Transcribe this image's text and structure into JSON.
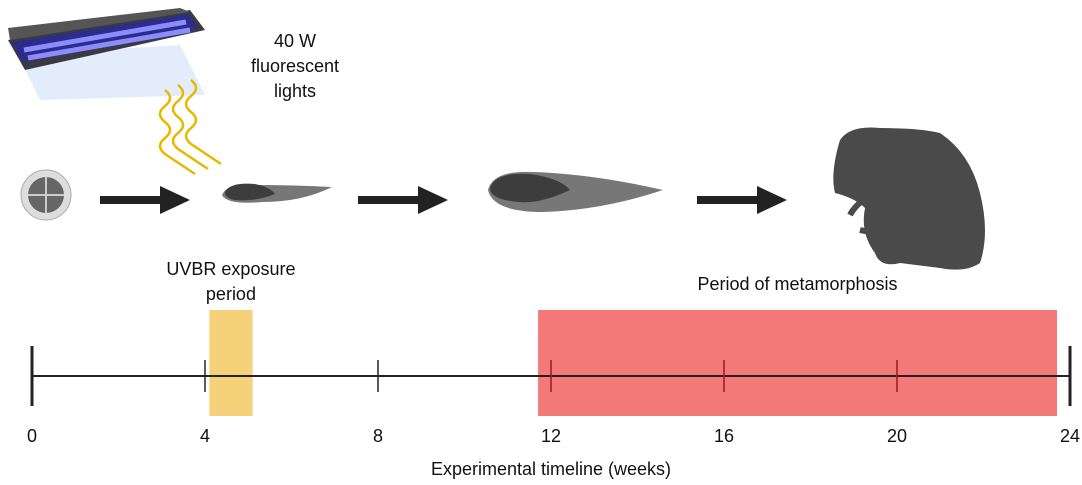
{
  "lamp": {
    "label_lines": [
      "40 W",
      "fluorescent",
      "lights"
    ]
  },
  "timeline": {
    "xlim": [
      0,
      24
    ],
    "xticks": [
      0,
      4,
      8,
      12,
      16,
      20,
      24
    ],
    "axis_label": "Experimental timeline (weeks)",
    "periods": [
      {
        "label_lines": [
          "UVBR exposure",
          "period"
        ],
        "start": 4.1,
        "end": 5.1,
        "color": "#f5d27a"
      },
      {
        "label_lines": [
          "Period of metamorphosis"
        ],
        "start": 11.7,
        "end": 23.7,
        "color": "#f47a7a"
      }
    ]
  }
}
